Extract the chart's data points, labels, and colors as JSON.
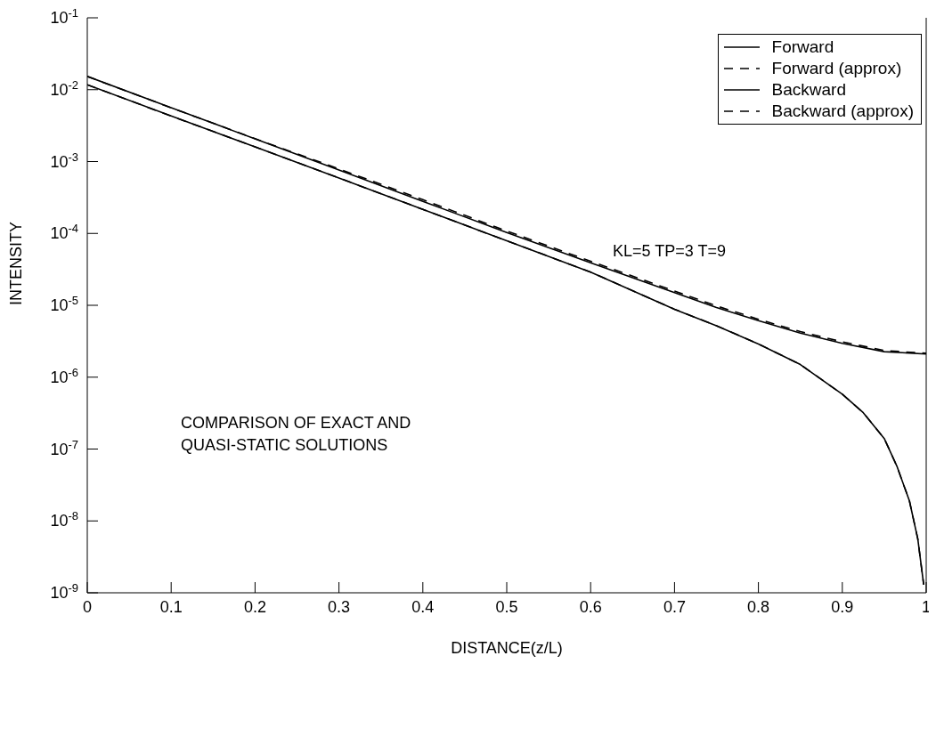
{
  "chart_data": {
    "type": "line",
    "xlabel": "DISTANCE(z/L)",
    "ylabel": "INTENSITY",
    "annotations": [
      "KL=5   TP=3   T=9",
      "COMPARISON OF EXACT AND\nQUASI-STATIC SOLUTIONS"
    ],
    "log": "y",
    "legend": "top right",
    "grid": false,
    "xlim": [
      0,
      1
    ],
    "xticks": [
      0,
      0.1,
      0.2,
      0.3,
      0.4,
      0.5,
      0.6,
      0.7,
      0.8,
      0.9,
      1
    ],
    "ylim": [
      1e-09,
      0.1
    ],
    "yticks": [
      {
        "value": 1e-09,
        "label": "10$^{-9}$"
      },
      {
        "value": 1e-08,
        "label": "10$^{-8}$"
      },
      {
        "value": 1e-07,
        "label": "10$^{-7}$"
      },
      {
        "value": 1e-06,
        "label": "10$^{-6}$"
      },
      {
        "value": 1e-05,
        "label": "10$^{-5}$"
      },
      {
        "value": 0.0001,
        "label": "10$^{-4}$"
      },
      {
        "value": 0.001,
        "label": "10$^{-3}$"
      },
      {
        "value": 0.01,
        "label": "10$^{-2}$"
      },
      {
        "value": 0.1,
        "label": "10$^{-1}$"
      }
    ],
    "series": [
      {
        "name": "Forward",
        "color": "#000000",
        "line_style": "solid",
        "x": [
          0,
          0.1,
          0.2,
          0.3,
          0.4,
          0.5,
          0.6,
          0.7,
          0.75,
          0.8,
          0.85,
          0.9,
          0.95,
          1.0
        ],
        "values": [
          0.0153,
          0.0056,
          0.00207,
          0.00076,
          0.00028,
          0.000103,
          3.9e-05,
          1.5e-05,
          9.3e-06,
          6.1e-06,
          4.1e-06,
          2.95e-06,
          2.26e-06,
          2.1e-06
        ]
      },
      {
        "name": "Forward (approx)",
        "color": "#000000",
        "line_style": "dashed",
        "x": [
          0,
          0.1,
          0.2,
          0.3,
          0.4,
          0.5,
          0.6,
          0.7,
          0.75,
          0.8,
          0.85,
          0.9,
          0.95,
          1.0
        ],
        "values": [
          0.0153,
          0.0056,
          0.00208,
          0.00079,
          0.000295,
          0.000108,
          4.1e-05,
          1.58e-05,
          9.8e-06,
          6.4e-06,
          4.3e-06,
          3.1e-06,
          2.35e-06,
          2.15e-06
        ]
      },
      {
        "name": "Backward",
        "color": "#000000",
        "line_style": "solid",
        "x": [
          0,
          0.1,
          0.2,
          0.3,
          0.4,
          0.5,
          0.6,
          0.7,
          0.75,
          0.8,
          0.85,
          0.9,
          0.925,
          0.95,
          0.965,
          0.98,
          0.99,
          0.997
        ],
        "values": [
          0.0117,
          0.0043,
          0.0016,
          0.00059,
          0.000216,
          7.9e-05,
          2.9e-05,
          8.8e-06,
          5.2e-06,
          2.9e-06,
          1.5e-06,
          5.8e-07,
          3.2e-07,
          1.4e-07,
          5.8e-08,
          1.9e-08,
          5.6e-09,
          1.3e-09
        ]
      },
      {
        "name": "Backward (approx)",
        "color": "#000000",
        "line_style": "dashed",
        "x": [
          0,
          0.1,
          0.2,
          0.3,
          0.4,
          0.5,
          0.6,
          0.7,
          0.75,
          0.8,
          0.85,
          0.9,
          0.925,
          0.95,
          0.965,
          0.98,
          0.99,
          0.997
        ],
        "values": [
          0.0117,
          0.0043,
          0.0016,
          0.00059,
          0.000216,
          7.9e-05,
          2.9e-05,
          8.8e-06,
          5.2e-06,
          2.9e-06,
          1.5e-06,
          5.8e-07,
          3.2e-07,
          1.4e-07,
          5.8e-08,
          1.9e-08,
          5.6e-09,
          1.3e-09
        ]
      }
    ]
  }
}
